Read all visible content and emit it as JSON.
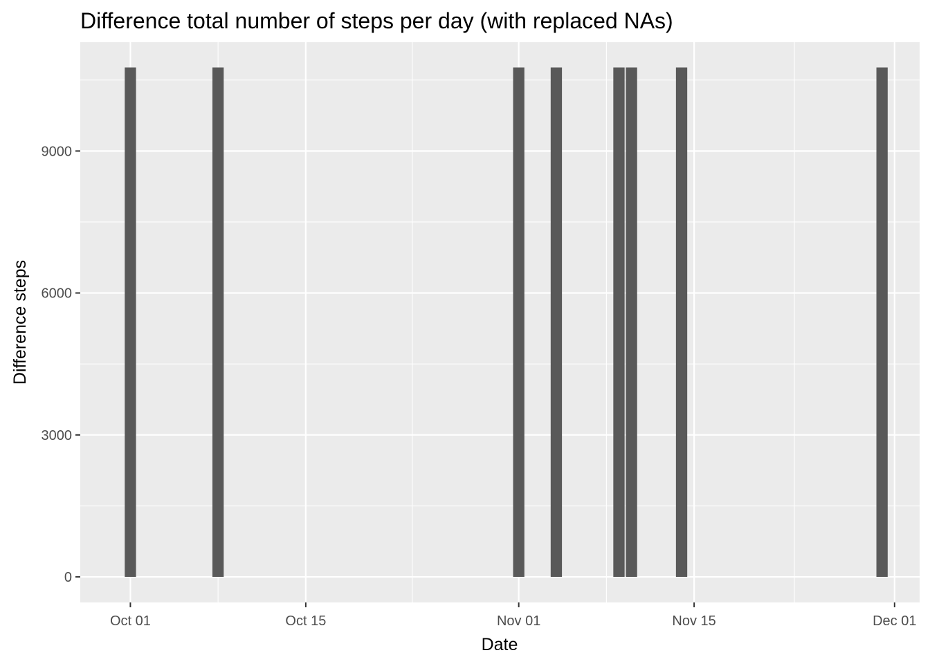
{
  "chart_data": {
    "type": "bar",
    "title": "Difference total number of steps per day (with replaced NAs)",
    "xlabel": "Date",
    "ylabel": "Difference steps",
    "x_axis": {
      "type": "date",
      "range": [
        "2012-09-27",
        "2012-12-03"
      ],
      "ticks": [
        "2012-10-01",
        "2012-10-15",
        "2012-11-01",
        "2012-11-15",
        "2012-12-01"
      ],
      "tick_labels": [
        "Oct 01",
        "Oct 15",
        "Nov 01",
        "Nov 15",
        "Dec 01"
      ]
    },
    "y_axis": {
      "range": [
        -540,
        11300
      ],
      "ticks": [
        0,
        3000,
        6000,
        9000
      ],
      "tick_labels": [
        "0",
        "3000",
        "6000",
        "9000"
      ]
    },
    "x": [
      "2012-10-01",
      "2012-10-08",
      "2012-11-01",
      "2012-11-04",
      "2012-11-09",
      "2012-11-10",
      "2012-11-14",
      "2012-11-30"
    ],
    "values": [
      10766,
      10766,
      10766,
      10766,
      10766,
      10766,
      10766,
      10766
    ],
    "grid": true,
    "legend": "none",
    "colors": {
      "bar": "#595959",
      "panel": "#ebebeb",
      "grid": "#ffffff",
      "tick": "#333333"
    }
  }
}
